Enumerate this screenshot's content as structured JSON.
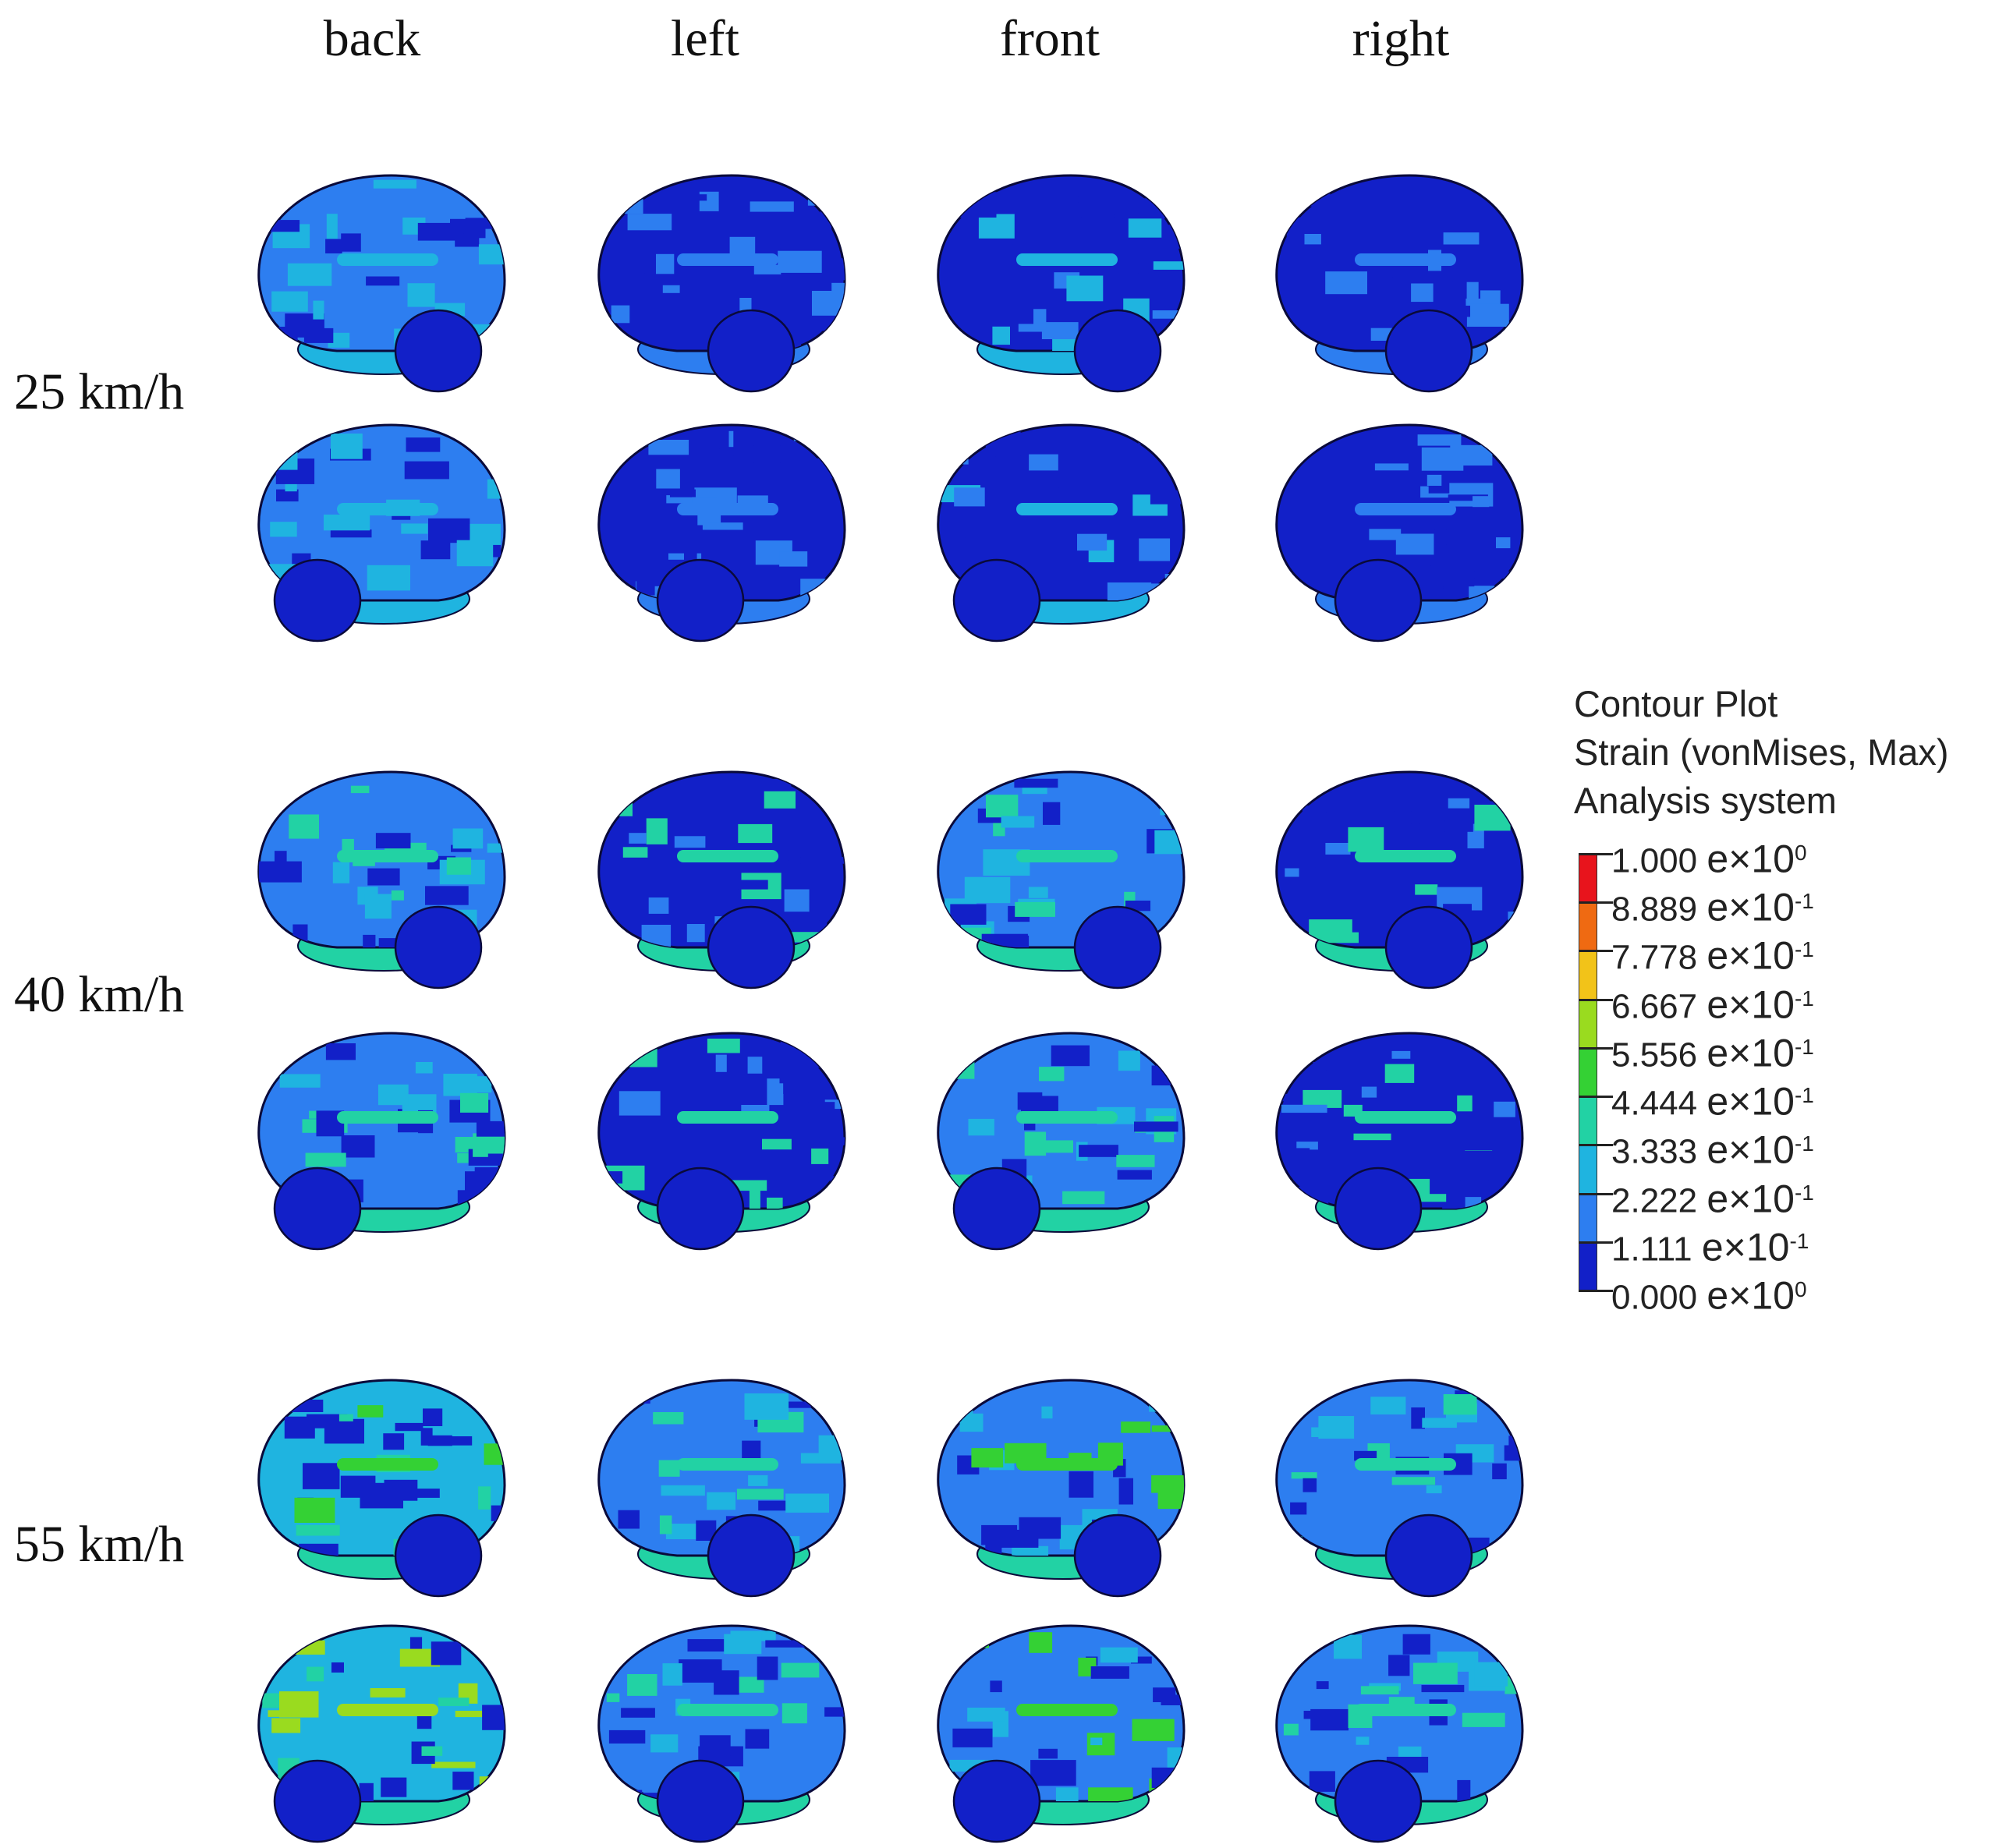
{
  "columns": [
    "back",
    "left",
    "front",
    "right"
  ],
  "speeds": [
    "25 km/h",
    "40 km/h",
    "55 km/h"
  ],
  "legend": {
    "title_lines": [
      "Contour Plot",
      "Strain (vonMises, Max)",
      "Analysis system"
    ],
    "entries": [
      {
        "value": "1.000",
        "exp": "0"
      },
      {
        "value": "8.889",
        "exp": "-1"
      },
      {
        "value": "7.778",
        "exp": "-1"
      },
      {
        "value": "6.667",
        "exp": "-1"
      },
      {
        "value": "5.556",
        "exp": "-1"
      },
      {
        "value": "4.444",
        "exp": "-1"
      },
      {
        "value": "3.333",
        "exp": "-1"
      },
      {
        "value": "2.222",
        "exp": "-1"
      },
      {
        "value": "1.111",
        "exp": "-1"
      },
      {
        "value": "0.000",
        "exp": "0"
      }
    ],
    "exp_prefix": "e×10",
    "colors_top_to_bottom": [
      "#e8141c",
      "#ef6a12",
      "#f2c319",
      "#9adb1f",
      "#34d134",
      "#22d2a4",
      "#1fb4e0",
      "#2d7ef0",
      "#1220c8"
    ]
  }
}
